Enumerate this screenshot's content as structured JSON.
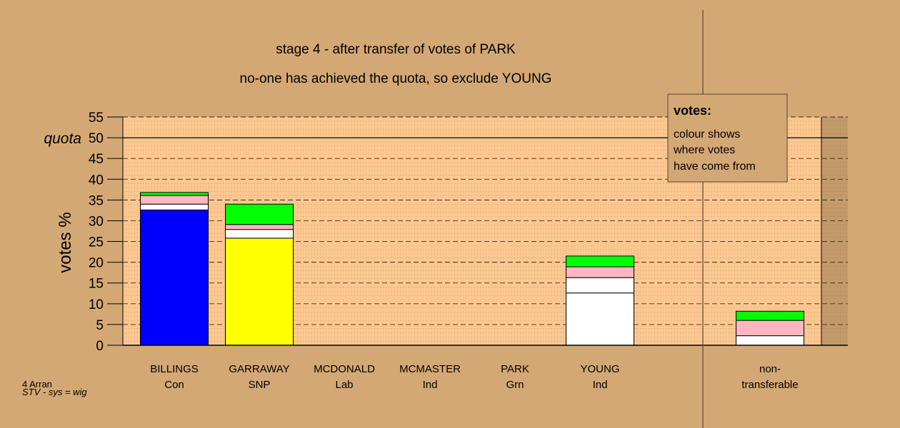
{
  "header": {
    "line1": "stage 4 - after transfer of votes of PARK",
    "line2": "no-one has achieved the quota, so exclude YOUNG"
  },
  "legend": {
    "title": "votes:",
    "lines": [
      "colour shows",
      "where votes",
      "have come from"
    ]
  },
  "footer": {
    "line1": "4 Arran",
    "line2": "STV - sys = wig"
  },
  "chart_data": {
    "type": "bar",
    "stacked": true,
    "ylabel": "votes %",
    "ylim": [
      0,
      55
    ],
    "yticks": [
      0,
      5,
      10,
      15,
      20,
      25,
      30,
      35,
      40,
      45,
      50,
      55
    ],
    "quota": {
      "label": "quota",
      "value": 50
    },
    "grid": "dashed horizontal lines",
    "categories": [
      {
        "name": "BILLINGS",
        "party": "Con",
        "segments": [
          {
            "value": 32.6,
            "color": "#0000ff"
          },
          {
            "value": 1.4,
            "color": "#ffffff"
          },
          {
            "value": 2.1,
            "color": "#ffb6c1"
          },
          {
            "value": 0.7,
            "color": "#00ff00"
          }
        ]
      },
      {
        "name": "GARRAWAY",
        "party": "SNP",
        "segments": [
          {
            "value": 25.8,
            "color": "#ffff00"
          },
          {
            "value": 2.1,
            "color": "#ffffff"
          },
          {
            "value": 1.2,
            "color": "#ffb6c1"
          },
          {
            "value": 4.9,
            "color": "#00ff00"
          }
        ]
      },
      {
        "name": "MCDONALD",
        "party": "Lab",
        "segments": []
      },
      {
        "name": "MCMASTER",
        "party": "Ind",
        "segments": []
      },
      {
        "name": "PARK",
        "party": "Grn",
        "segments": []
      },
      {
        "name": "YOUNG",
        "party": "Ind",
        "segments": [
          {
            "value": 12.6,
            "color": "#ffffff"
          },
          {
            "value": 3.7,
            "color": "#ffffff"
          },
          {
            "value": 2.6,
            "color": "#ffb6c1"
          },
          {
            "value": 2.6,
            "color": "#00ff00"
          }
        ]
      },
      {
        "name": "non-",
        "party": "transferable",
        "separated": true,
        "segments": [
          {
            "value": 2.3,
            "color": "#ffffff"
          },
          {
            "value": 3.7,
            "color": "#ffb6c1"
          },
          {
            "value": 2.2,
            "color": "#00ff00"
          }
        ]
      }
    ]
  }
}
